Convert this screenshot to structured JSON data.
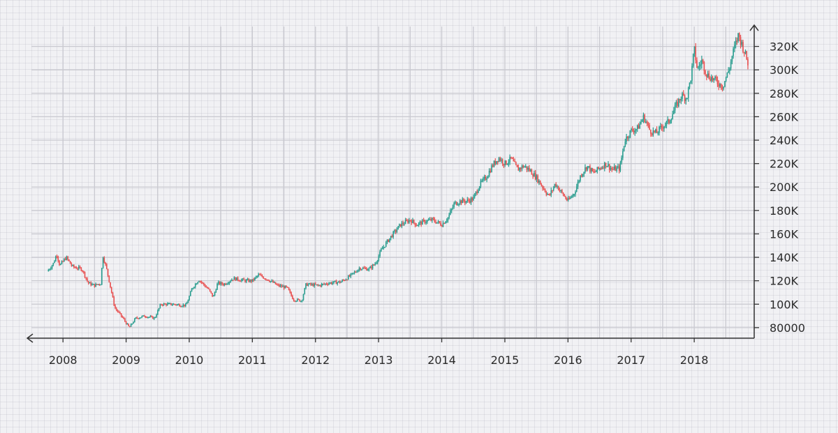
{
  "chart_data": {
    "type": "candlestick",
    "title": "",
    "xlabel": "",
    "ylabel": "",
    "x_ticks": [
      "2008",
      "2009",
      "2010",
      "2011",
      "2012",
      "2013",
      "2014",
      "2015",
      "2016",
      "2017",
      "2018"
    ],
    "y_ticks": [
      "80000",
      "100K",
      "120K",
      "140K",
      "160K",
      "180K",
      "200K",
      "220K",
      "240K",
      "260K",
      "280K",
      "300K",
      "320K"
    ],
    "x_range": [
      2007.5,
      2018.95
    ],
    "y_range": [
      71000,
      337000
    ],
    "y_axis_position": "right",
    "grid": true,
    "colors": {
      "up": "#2a9d8f",
      "down": "#e85050",
      "axis": "#333333",
      "grid": "#c9c9d0"
    },
    "price_path": [
      [
        2007.75,
        128000
      ],
      [
        2007.85,
        135000
      ],
      [
        2007.9,
        143000
      ],
      [
        2007.95,
        133000
      ],
      [
        2008.05,
        140000
      ],
      [
        2008.15,
        132000
      ],
      [
        2008.3,
        130000
      ],
      [
        2008.4,
        118000
      ],
      [
        2008.5,
        116000
      ],
      [
        2008.6,
        118000
      ],
      [
        2008.63,
        142000
      ],
      [
        2008.7,
        128000
      ],
      [
        2008.82,
        97000
      ],
      [
        2008.95,
        88000
      ],
      [
        2009.05,
        80000
      ],
      [
        2009.15,
        88000
      ],
      [
        2009.3,
        90000
      ],
      [
        2009.45,
        88000
      ],
      [
        2009.55,
        100000
      ],
      [
        2009.75,
        100000
      ],
      [
        2009.95,
        99000
      ],
      [
        2010.05,
        114000
      ],
      [
        2010.15,
        121000
      ],
      [
        2010.3,
        113000
      ],
      [
        2010.38,
        106000
      ],
      [
        2010.45,
        118000
      ],
      [
        2010.55,
        117000
      ],
      [
        2010.7,
        122000
      ],
      [
        2010.9,
        120000
      ],
      [
        2011.0,
        120000
      ],
      [
        2011.1,
        125000
      ],
      [
        2011.25,
        121000
      ],
      [
        2011.4,
        116000
      ],
      [
        2011.55,
        114000
      ],
      [
        2011.65,
        104000
      ],
      [
        2011.78,
        103000
      ],
      [
        2011.85,
        117000
      ],
      [
        2012.05,
        116000
      ],
      [
        2012.2,
        118000
      ],
      [
        2012.4,
        119000
      ],
      [
        2012.55,
        124000
      ],
      [
        2012.7,
        131000
      ],
      [
        2012.85,
        130000
      ],
      [
        2012.95,
        135000
      ],
      [
        2013.05,
        147000
      ],
      [
        2013.2,
        158000
      ],
      [
        2013.35,
        168000
      ],
      [
        2013.5,
        172000
      ],
      [
        2013.6,
        168000
      ],
      [
        2013.75,
        171000
      ],
      [
        2013.85,
        172000
      ],
      [
        2014.0,
        168000
      ],
      [
        2014.1,
        174000
      ],
      [
        2014.2,
        186000
      ],
      [
        2014.3,
        188000
      ],
      [
        2014.4,
        188000
      ],
      [
        2014.5,
        190000
      ],
      [
        2014.6,
        202000
      ],
      [
        2014.7,
        208000
      ],
      [
        2014.8,
        218000
      ],
      [
        2014.9,
        225000
      ],
      [
        2015.0,
        220000
      ],
      [
        2015.1,
        224000
      ],
      [
        2015.2,
        215000
      ],
      [
        2015.3,
        218000
      ],
      [
        2015.4,
        214000
      ],
      [
        2015.5,
        208000
      ],
      [
        2015.6,
        200000
      ],
      [
        2015.7,
        192000
      ],
      [
        2015.8,
        203000
      ],
      [
        2015.9,
        195000
      ],
      [
        2016.0,
        188000
      ],
      [
        2016.1,
        195000
      ],
      [
        2016.2,
        210000
      ],
      [
        2016.3,
        218000
      ],
      [
        2016.4,
        212000
      ],
      [
        2016.5,
        216000
      ],
      [
        2016.6,
        220000
      ],
      [
        2016.7,
        215000
      ],
      [
        2016.82,
        216000
      ],
      [
        2016.9,
        240000
      ],
      [
        2017.0,
        248000
      ],
      [
        2017.1,
        250000
      ],
      [
        2017.2,
        260000
      ],
      [
        2017.3,
        248000
      ],
      [
        2017.4,
        246000
      ],
      [
        2017.5,
        252000
      ],
      [
        2017.6,
        256000
      ],
      [
        2017.7,
        268000
      ],
      [
        2017.8,
        278000
      ],
      [
        2017.88,
        276000
      ],
      [
        2017.95,
        294000
      ],
      [
        2018.0,
        318000
      ],
      [
        2018.05,
        300000
      ],
      [
        2018.12,
        308000
      ],
      [
        2018.2,
        296000
      ],
      [
        2018.35,
        290000
      ],
      [
        2018.45,
        286000
      ],
      [
        2018.55,
        300000
      ],
      [
        2018.62,
        316000
      ],
      [
        2018.7,
        330000
      ],
      [
        2018.78,
        318000
      ],
      [
        2018.85,
        306000
      ]
    ]
  }
}
